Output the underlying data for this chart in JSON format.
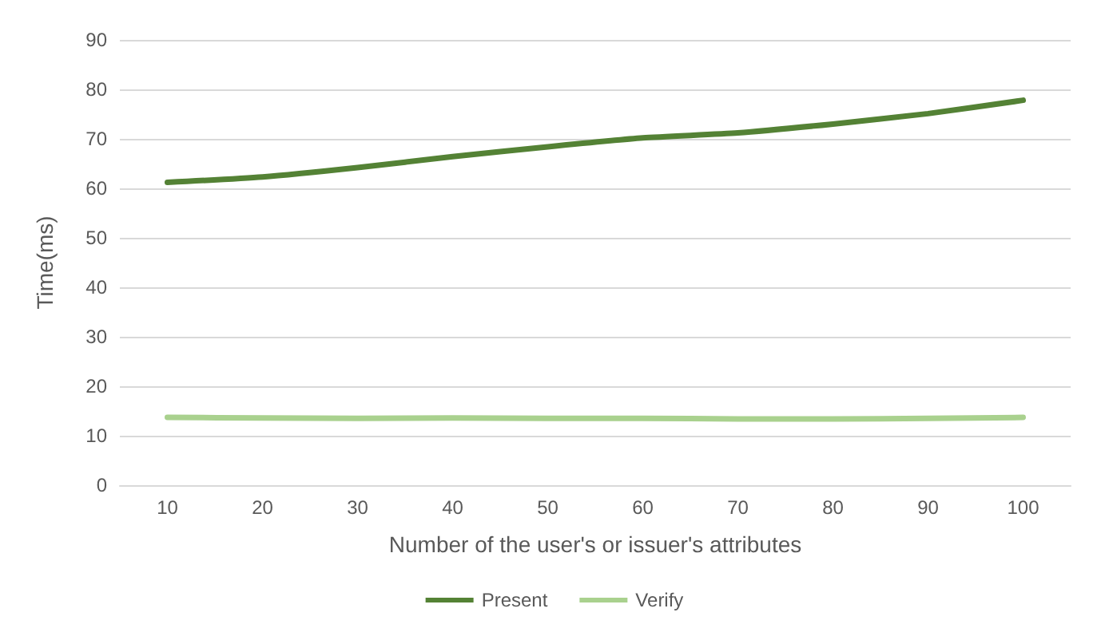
{
  "chart_data": {
    "type": "line",
    "ylabel": "Time(ms)",
    "xlabel": "Number of the user's or issuer's attributes",
    "categories": [
      "10",
      "20",
      "30",
      "40",
      "50",
      "60",
      "70",
      "80",
      "90",
      "100"
    ],
    "series": [
      {
        "name": "Present",
        "color": "#548235",
        "values": [
          61.2,
          62.3,
          64.2,
          66.4,
          68.4,
          70.2,
          71.2,
          73.0,
          75.1,
          77.8
        ]
      },
      {
        "name": "Verify",
        "color": "#a9d18e",
        "values": [
          13.7,
          13.6,
          13.5,
          13.6,
          13.5,
          13.5,
          13.4,
          13.4,
          13.5,
          13.7
        ]
      }
    ],
    "ylim": [
      0,
      90
    ],
    "yticks": [
      0,
      10,
      20,
      30,
      40,
      50,
      60,
      70,
      80,
      90
    ],
    "grid": "y",
    "legend": "bottom",
    "marker": "none",
    "line_style": "solid"
  }
}
